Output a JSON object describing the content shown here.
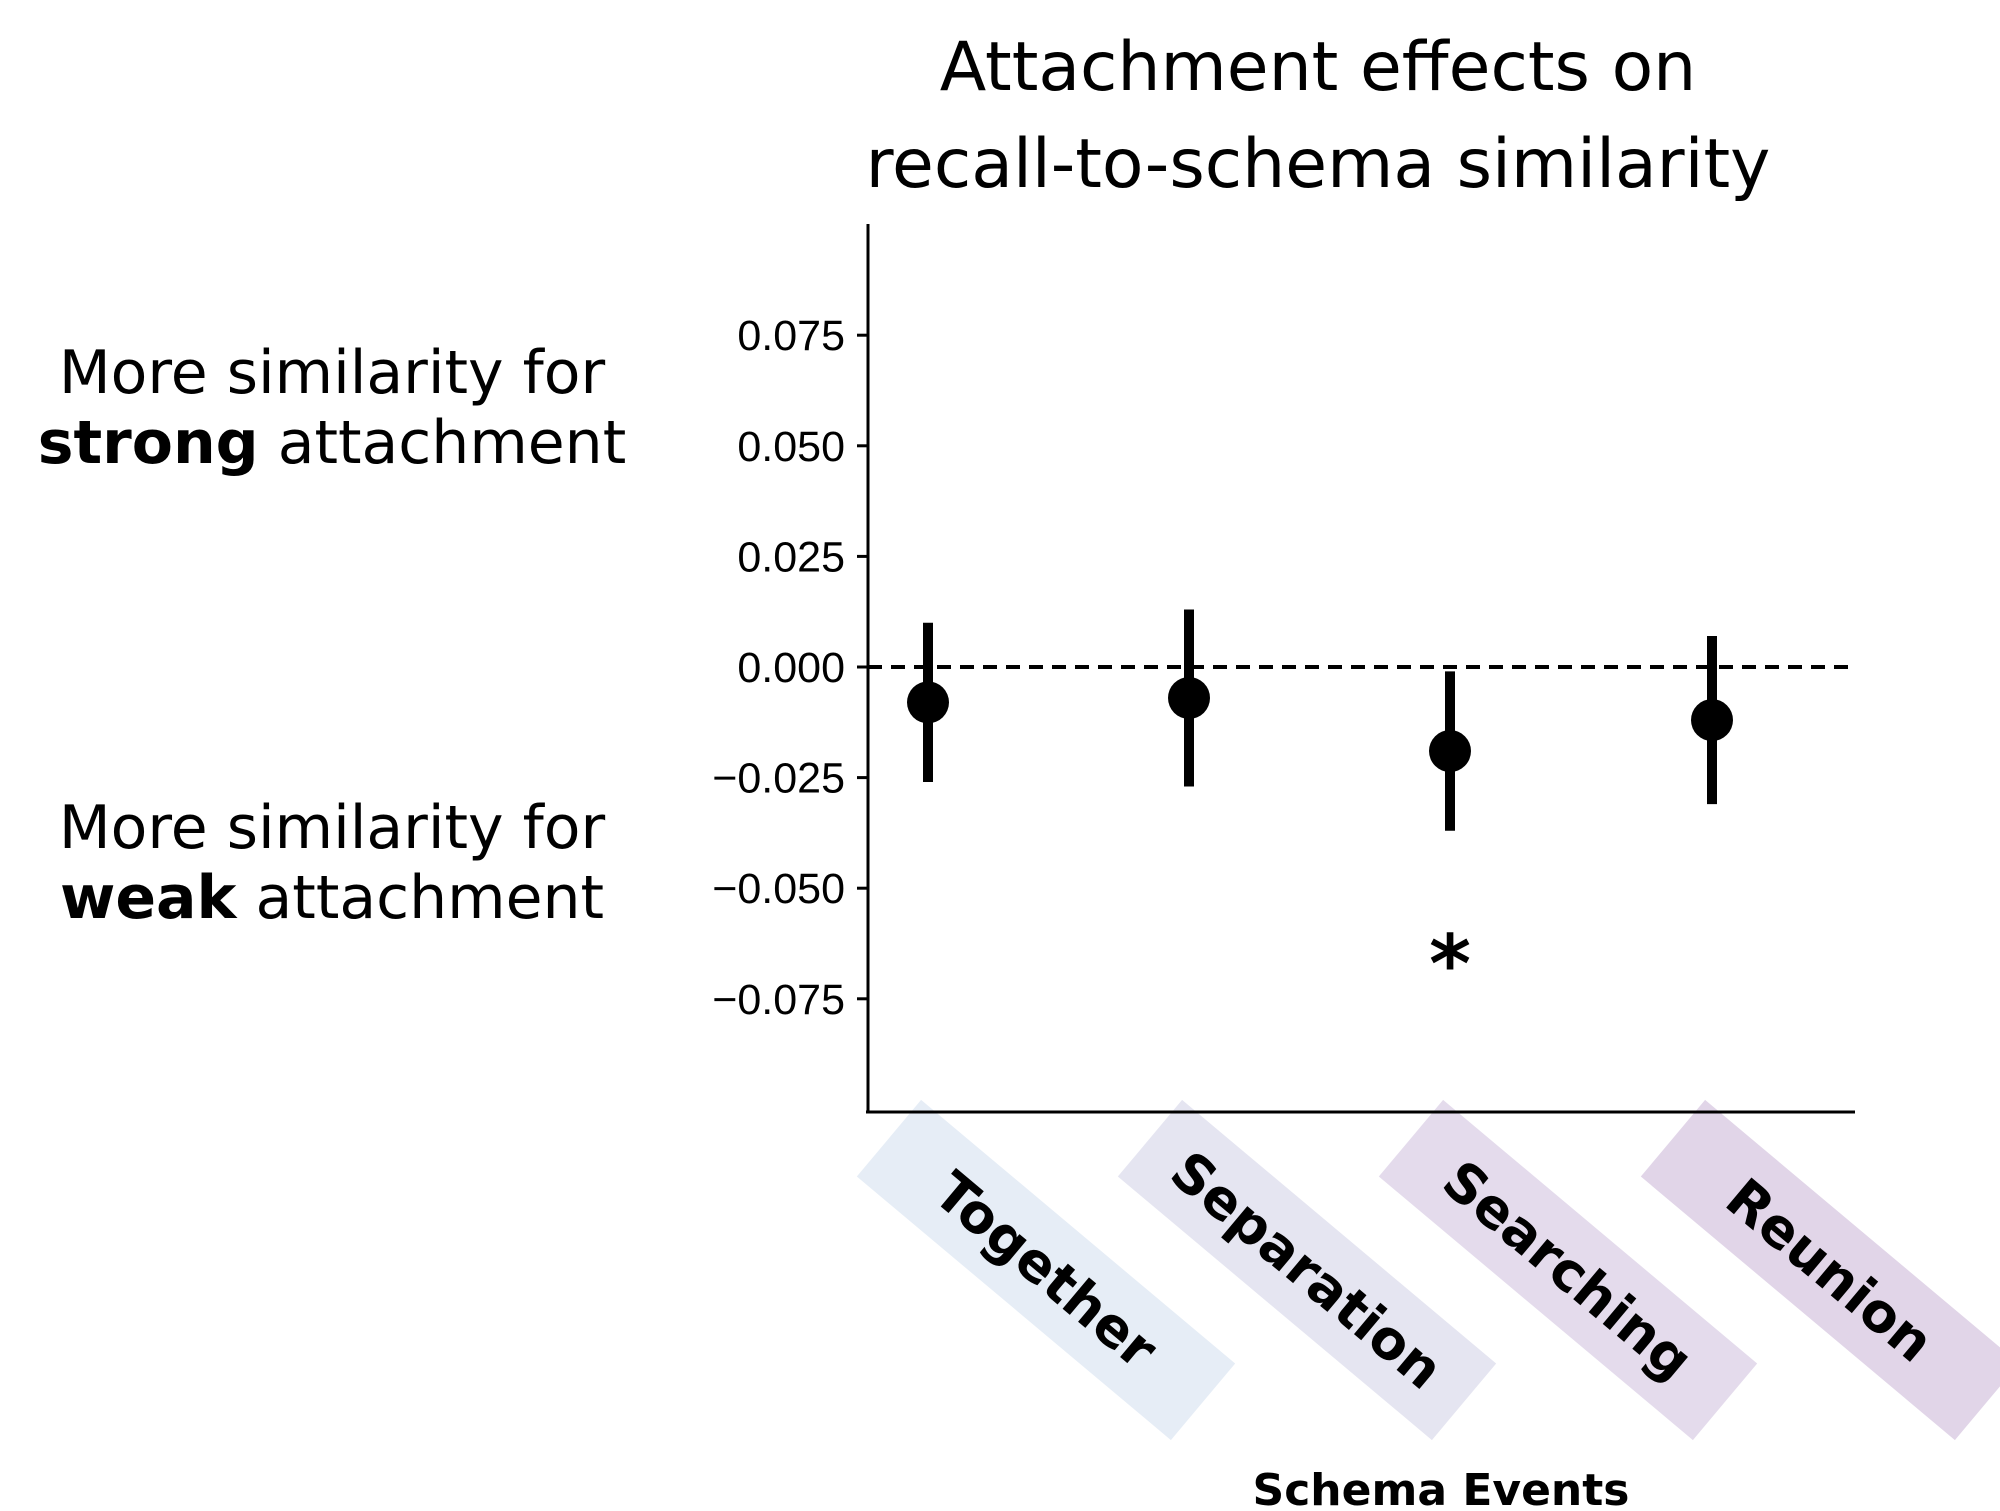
{
  "chart_data": {
    "type": "scatter",
    "title_lines": [
      "Attachment effects on",
      "recall-to-schema similarity"
    ],
    "xlabel": "Schema Events",
    "ylabel": "",
    "ylim": [
      -0.1,
      0.1
    ],
    "yticks": [
      "0.075",
      "0.050",
      "0.025",
      "0.000",
      "−0.025",
      "−0.050",
      "−0.075"
    ],
    "ytick_values": [
      0.075,
      0.05,
      0.025,
      0.0,
      -0.025,
      -0.05,
      -0.075
    ],
    "categories": [
      "Together",
      "Separation",
      "Searching",
      "Reunion"
    ],
    "category_colors": [
      "#e6edf6",
      "#e5e5f1",
      "#e4dbec",
      "#e1d5e8"
    ],
    "values": [
      -0.008,
      -0.007,
      -0.019,
      -0.012
    ],
    "error_low": [
      -0.026,
      -0.027,
      -0.037,
      -0.031
    ],
    "error_high": [
      0.01,
      0.013,
      -0.001,
      0.007
    ],
    "reference_line": 0.0,
    "significance": {
      "category": "Searching",
      "marker": "*",
      "y": -0.064
    },
    "annotations": {
      "top": {
        "line1": "More similarity for",
        "bold": "strong",
        "rest": " attachment"
      },
      "bottom": {
        "line1": "More similarity for",
        "bold": "weak",
        "rest": " attachment"
      }
    },
    "grid": false,
    "legend": "none"
  }
}
